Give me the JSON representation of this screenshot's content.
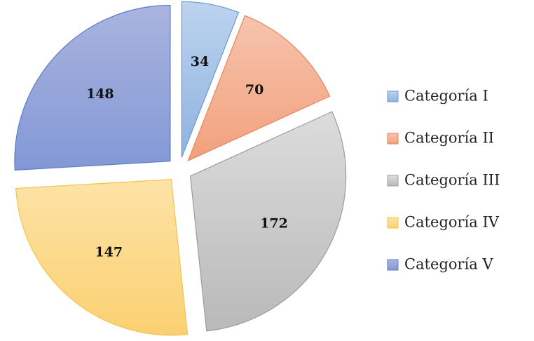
{
  "chart_data": {
    "type": "pie",
    "exploded": true,
    "legend_position": "right",
    "slices": [
      {
        "name": "Categoría I",
        "value": 34,
        "color_top": "#bcd3ee",
        "color_bottom": "#8fb2e0",
        "stroke": "#6f98cc"
      },
      {
        "name": "Categoría II",
        "value": 70,
        "color_top": "#f6c4ae",
        "color_bottom": "#f2a07c",
        "stroke": "#e8835c"
      },
      {
        "name": "Categoría III",
        "value": 172,
        "color_top": "#dcdcdc",
        "color_bottom": "#b9b9b9",
        "stroke": "#9c9c9c"
      },
      {
        "name": "Categoría IV",
        "value": 147,
        "color_top": "#fde3a6",
        "color_bottom": "#fbd071",
        "stroke": "#f3c24f"
      },
      {
        "name": "Categoría V",
        "value": 148,
        "color_top": "#aab4de",
        "color_bottom": "#8298d6",
        "stroke": "#5f7ac7"
      }
    ]
  }
}
